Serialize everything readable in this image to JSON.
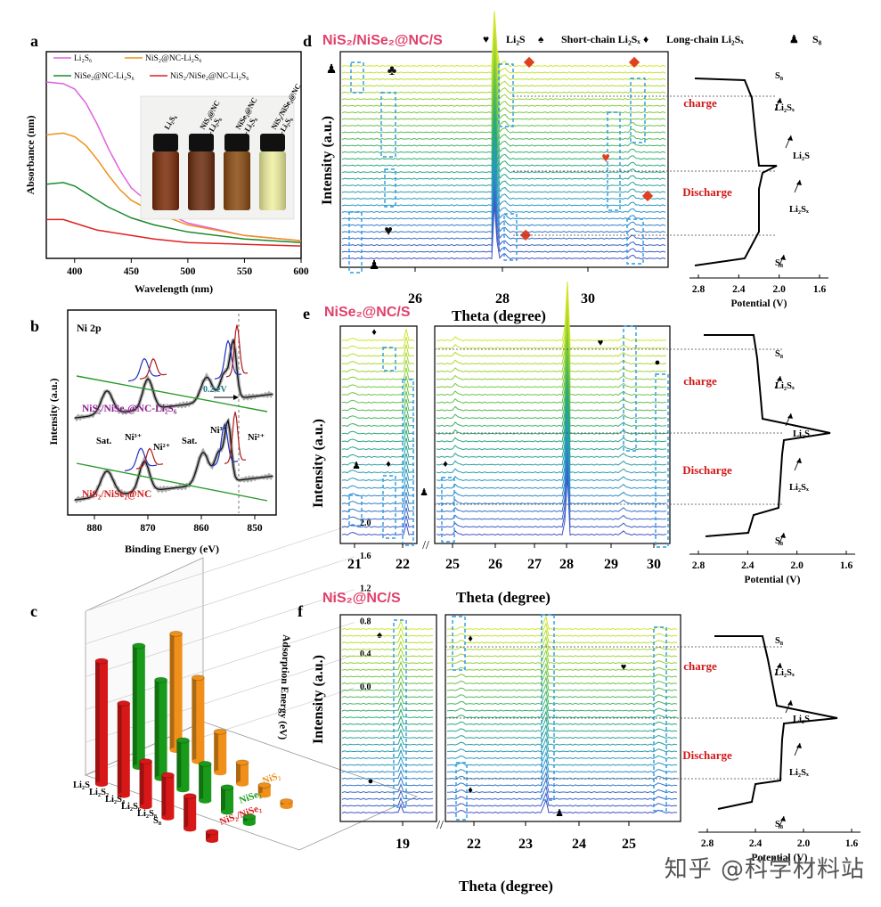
{
  "chart_data": [
    {
      "id": "a",
      "type": "line",
      "panel_label": "a",
      "xlabel": "Wavelength (nm)",
      "ylabel": "Absorbance (nm)",
      "xlim": [
        375,
        600
      ],
      "xticks": [
        "400",
        "450",
        "500",
        "550",
        "600"
      ],
      "series": [
        {
          "name": "Li₂S₆",
          "color": "#e060e0",
          "x": [
            375,
            390,
            400,
            410,
            420,
            430,
            440,
            450,
            470,
            500,
            550,
            600
          ],
          "y": [
            1.0,
            0.99,
            0.96,
            0.88,
            0.76,
            0.62,
            0.5,
            0.4,
            0.29,
            0.2,
            0.13,
            0.1
          ]
        },
        {
          "name": "NiS₂@NC-Li₂S₆",
          "color": "#f0901a",
          "x": [
            375,
            390,
            400,
            410,
            420,
            430,
            440,
            450,
            470,
            500,
            550,
            600
          ],
          "y": [
            0.7,
            0.71,
            0.69,
            0.64,
            0.56,
            0.47,
            0.39,
            0.33,
            0.26,
            0.19,
            0.13,
            0.1
          ]
        },
        {
          "name": "NiSe₂@NC-Li₂S₆",
          "color": "#1a8a2a",
          "x": [
            375,
            390,
            400,
            410,
            420,
            430,
            440,
            450,
            470,
            500,
            550,
            600
          ],
          "y": [
            0.42,
            0.43,
            0.41,
            0.37,
            0.33,
            0.29,
            0.26,
            0.23,
            0.19,
            0.15,
            0.11,
            0.09
          ]
        },
        {
          "name": "NiS₂/NiSe₂@NC-Li₂S₆",
          "color": "#e02020",
          "x": [
            375,
            390,
            400,
            410,
            420,
            430,
            440,
            450,
            470,
            500,
            550,
            600
          ],
          "y": [
            0.22,
            0.22,
            0.2,
            0.18,
            0.16,
            0.15,
            0.14,
            0.13,
            0.11,
            0.09,
            0.08,
            0.07
          ]
        }
      ],
      "inset_vial_labels": [
        "Li₂S₆",
        "NiS₂@NC -Li₂S₆",
        "NiSe₂@NC -Li₂S₆",
        "NiS₂/NiSe₂@NC -Li₂S₆"
      ],
      "inset_vial_colors": [
        "#7a2a08",
        "#6a2a0c",
        "#8a4a10",
        "#f0f0a0"
      ]
    },
    {
      "id": "b",
      "type": "line",
      "panel_label": "b",
      "xlabel": "Binding Energy (eV)",
      "ylabel": "Intensity (a.u.)",
      "xlim": [
        885,
        846
      ],
      "xticks": [
        "880",
        "870",
        "860",
        "850"
      ],
      "title_text": "Ni 2p",
      "shift_label": "0.2 eV",
      "trace_labels": [
        "NiS₂/NiSe₂@NC-Li₂S₆",
        "NiS₂/NiSe₂@NC"
      ],
      "peak_labels": [
        "Sat.",
        "Ni³⁺",
        "Ni²⁺",
        "Sat.",
        "Ni³⁺",
        "Ni²⁺"
      ]
    },
    {
      "id": "c",
      "type": "bar",
      "panel_label": "c",
      "zlabel": "Adsorption Energy (eV)",
      "zlim": [
        0,
        2.0
      ],
      "zticks": [
        "0.0",
        "0.4",
        "0.8",
        "1.2",
        "1.6",
        "2.0"
      ],
      "categories": [
        "Li₂S",
        "Li₂S₂",
        "Li₂S₄",
        "Li₂S₆",
        "Li₂S₈",
        "S₈"
      ],
      "series": [
        {
          "name": "NiS₂/NiSe₂",
          "color": "#d81818",
          "values": [
            1.5,
            1.12,
            0.55,
            0.52,
            0.4,
            0.1
          ]
        },
        {
          "name": "NiSe₂",
          "color": "#1a9a1a",
          "values": [
            1.48,
            1.2,
            0.6,
            0.45,
            0.3,
            0.08
          ]
        },
        {
          "name": "NiS₂",
          "color": "#f0901a",
          "values": [
            1.42,
            1.02,
            0.5,
            0.26,
            0.12,
            0.06
          ]
        }
      ]
    },
    {
      "id": "d",
      "type": "heatmap",
      "panel_label": "d",
      "title": "NiS₂/NiSe₂@NC/S",
      "xlabel": "Theta (degree)",
      "ylabel": "Intensity (a.u.)",
      "xticks": [
        "26",
        "28",
        "30"
      ],
      "legend": [
        "Li₂S",
        "Short-chain Li₂Sₓ",
        "Long-chain Li₂Sₓ",
        "S₈"
      ],
      "potential_axis": {
        "label": "Potential (V)",
        "ticks": [
          "2.8",
          "2.4",
          "2.0",
          "1.6"
        ]
      },
      "profile_labels": [
        "charge",
        "Discharge"
      ],
      "annotations": [
        "S₈",
        "Li₂Sₓ",
        "Li₂S",
        "Li₂Sₓ",
        "S₈"
      ]
    },
    {
      "id": "e",
      "type": "heatmap",
      "panel_label": "e",
      "title": "NiSe₂@NC/S",
      "xlabel": "Theta (degree)",
      "ylabel": "Intensity (a.u.)",
      "xticks": [
        "21",
        "22",
        "25",
        "26",
        "27",
        "28",
        "29",
        "30"
      ],
      "potential_axis": {
        "label": "Potential (V)",
        "ticks": [
          "2.8",
          "2.4",
          "2.0",
          "1.6"
        ]
      },
      "profile_labels": [
        "charge",
        "Discharge"
      ],
      "annotations": [
        "S₈",
        "Li₂Sₓ",
        "Li₂S",
        "Li₂Sₓ",
        "S₈"
      ]
    },
    {
      "id": "f",
      "type": "heatmap",
      "panel_label": "f",
      "title": "NiS₂@NC/S",
      "xlabel": "Theta (degree)",
      "ylabel": "Intensity (a.u.)",
      "xticks": [
        "19",
        "22",
        "23",
        "24",
        "25"
      ],
      "potential_axis": {
        "label": "Potential (V)",
        "ticks": [
          "2.8",
          "2.4",
          "2.0",
          "1.6"
        ]
      },
      "profile_labels": [
        "charge",
        "Discharge"
      ],
      "annotations": [
        "S₈",
        "Li₂Sₓ",
        "Li₂S",
        "Li₂Sₓ",
        "S₈"
      ]
    }
  ],
  "watermark": "知乎 @科学材料站"
}
